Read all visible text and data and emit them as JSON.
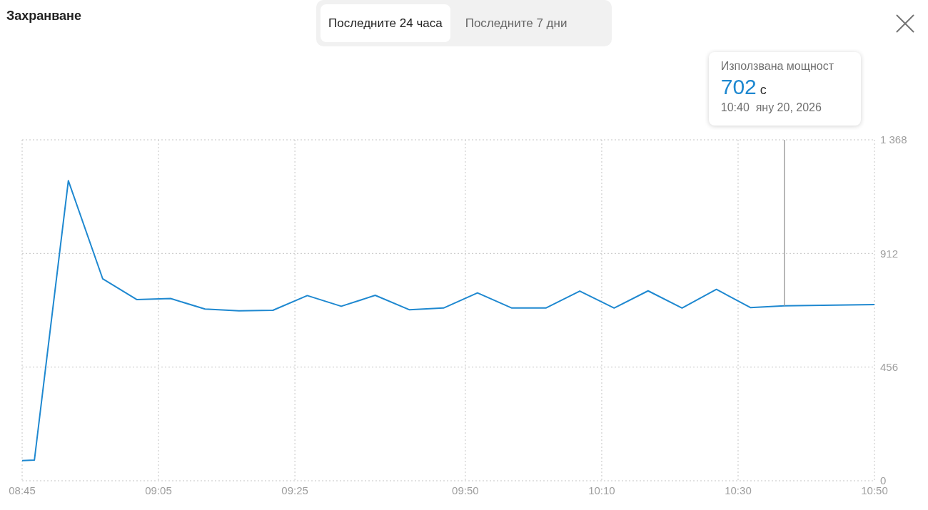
{
  "chart_data": {
    "type": "line",
    "title": "Захранване",
    "x": [
      8.75,
      8.78,
      8.863,
      8.947,
      9.03,
      9.113,
      9.197,
      9.28,
      9.363,
      9.447,
      9.53,
      9.613,
      9.697,
      9.78,
      9.863,
      9.947,
      10.03,
      10.113,
      10.197,
      10.28,
      10.363,
      10.447,
      10.53,
      10.613,
      10.8333
    ],
    "values": [
      81,
      83,
      1204,
      810,
      727,
      731,
      689,
      682,
      684,
      743,
      700,
      744,
      686,
      693,
      754,
      693,
      693,
      761,
      693,
      762,
      693,
      768,
      695,
      702,
      707
    ],
    "color": "#1e88d0",
    "xlim": [
      8.75,
      10.8333
    ],
    "xticks": [
      {
        "value": 8.75,
        "label": "08:45"
      },
      {
        "value": 9.0833,
        "label": "09:05"
      },
      {
        "value": 9.4167,
        "label": "09:25"
      },
      {
        "value": 9.8333,
        "label": "09:50"
      },
      {
        "value": 10.1667,
        "label": "10:10"
      },
      {
        "value": 10.5,
        "label": "10:30"
      },
      {
        "value": 10.8333,
        "label": "10:50"
      }
    ],
    "ylim": [
      0,
      1368
    ],
    "yticks": [
      0,
      456,
      912,
      {
        "value": 1368,
        "label": "1 368"
      }
    ],
    "grid": true,
    "ref_lines": [
      {
        "axis": "x",
        "value": 10.613,
        "color": "#a0a0a0"
      }
    ],
    "annotations": [
      "Последните 24 часа",
      "Последните 7 дни",
      "Използвана мощност",
      "702 с",
      "10:40  яну 20, 2026"
    ]
  }
}
